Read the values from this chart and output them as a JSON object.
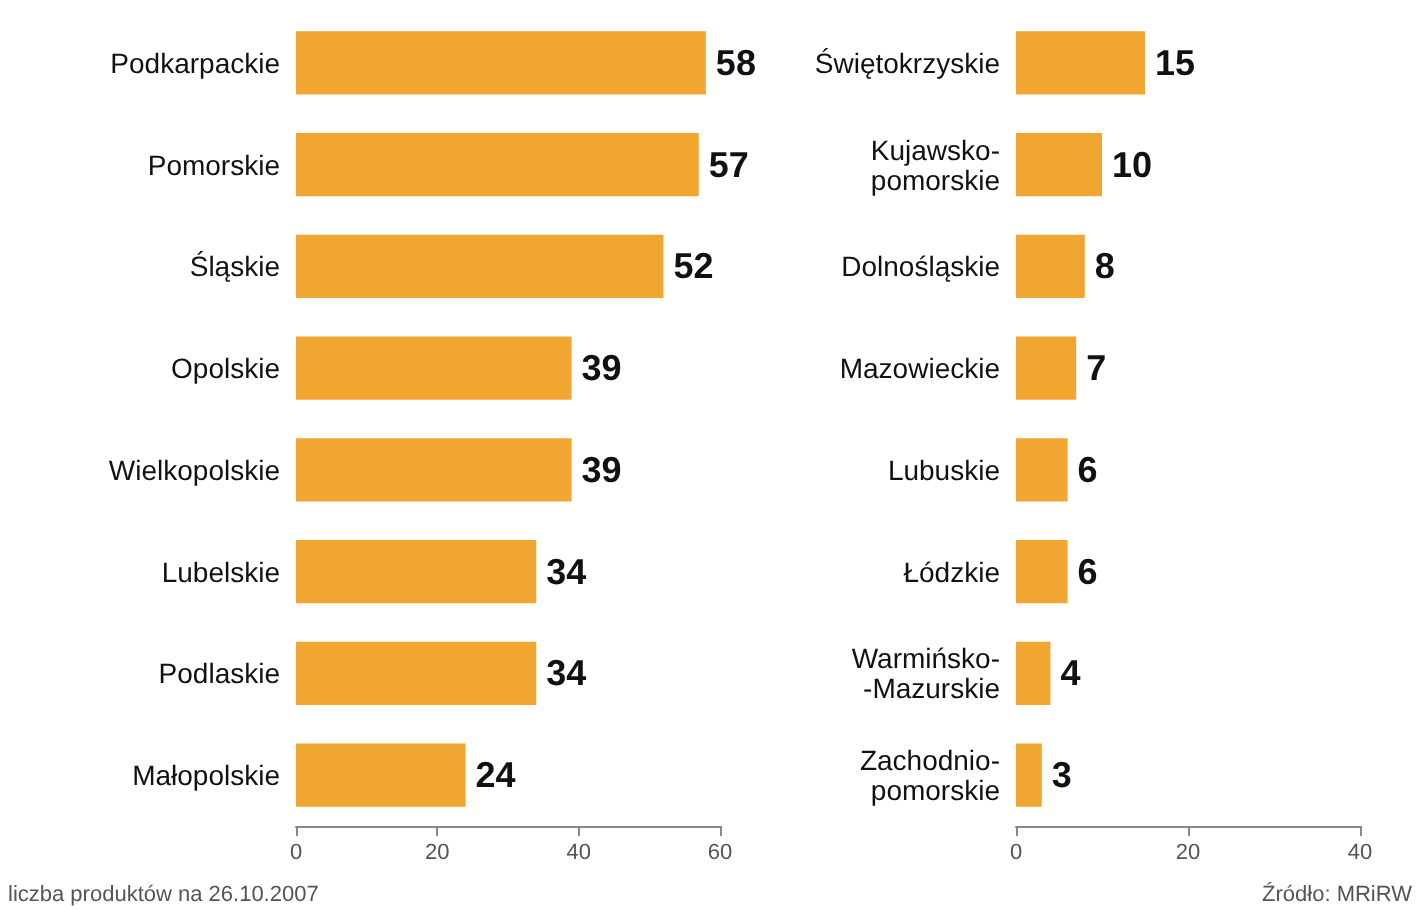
{
  "chart_data": [
    {
      "type": "bar",
      "orientation": "horizontal",
      "categories": [
        "Podkarpackie",
        "Pomorskie",
        "Śląskie",
        "Opolskie",
        "Wielkopolskie",
        "Lubelskie",
        "Podlaskie",
        "Małopolskie"
      ],
      "values": [
        58,
        57,
        52,
        39,
        39,
        34,
        34,
        24
      ],
      "color": "#f0a630",
      "xlim": [
        0,
        60
      ],
      "xticks": [
        0,
        20,
        40,
        60
      ],
      "data_labels": true,
      "annotations": [
        "liczba produktów na 26.10.2007"
      ]
    },
    {
      "type": "bar",
      "orientation": "horizontal",
      "categories": [
        "Świętokrzyskie",
        "Kujawsko-\npomorskie",
        "Dolnośląskie",
        "Mazowieckie",
        "Lubuskie",
        "Łódzkie",
        "Warmińsko-\n-Mazurskie",
        "Zachodnio-\npomorskie"
      ],
      "values": [
        15,
        10,
        8,
        7,
        6,
        6,
        4,
        3
      ],
      "color": "#f0a630",
      "xlim": [
        0,
        40
      ],
      "xticks": [
        0,
        20,
        40
      ],
      "data_labels": true,
      "annotations": [
        "Źródło: MRiRW"
      ]
    }
  ]
}
